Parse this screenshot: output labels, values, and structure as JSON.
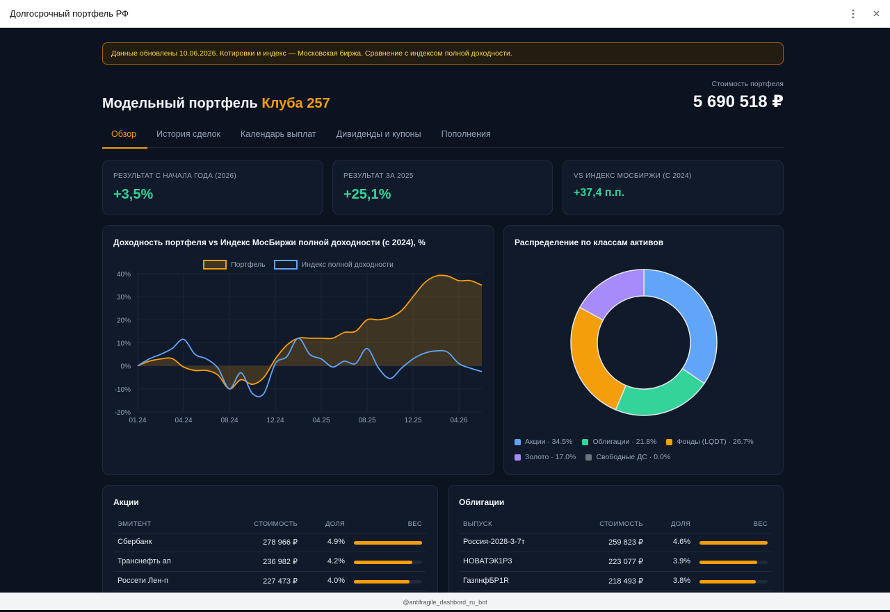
{
  "window": {
    "title": "Долгосрочный портфель РФ"
  },
  "notice": "Данные обновлены 10.06.2026. Котировки и индекс — Московская биржа. Сравнение с индексом полной доходности.",
  "header": {
    "title": "Модельный портфель",
    "title_accent": "Клуба 257",
    "value_label": "Стоимость портфеля",
    "value": "5 690 518 ₽"
  },
  "tabs": [
    "Обзор",
    "История сделок",
    "Календарь выплат",
    "Дивиденды и купоны",
    "Пополнения"
  ],
  "active_tab": 0,
  "kpis": [
    {
      "label": "РЕЗУЛЬТАТ С НАЧАЛА ГОДА (2026)",
      "value": "+3,5%"
    },
    {
      "label": "РЕЗУЛЬТАТ ЗА 2025",
      "value": "+25,1%"
    },
    {
      "label": "VS ИНДЕКС МОСБИРЖИ (С 2024)",
      "value": "+37,4 п.п."
    }
  ],
  "chart_data": [
    {
      "type": "line",
      "title": "Доходность портфеля vs Индекс МосБиржи полной доходности (с 2024), %",
      "categories": [
        "01.24",
        null,
        null,
        null,
        "04.24",
        null,
        null,
        null,
        "08.24",
        null,
        null,
        null,
        "12.24",
        null,
        null,
        null,
        "04.25",
        null,
        null,
        null,
        "08.25",
        null,
        null,
        null,
        "12.25",
        null,
        null,
        null,
        "04.26",
        null,
        null
      ],
      "series": [
        {
          "name": "Портфель",
          "color": "#f59e0b",
          "fill": true,
          "values": [
            0,
            2,
            3,
            3.2,
            -0.5,
            -2,
            -2,
            -4,
            -10,
            -6,
            -8,
            -5,
            3,
            9,
            12,
            12,
            12,
            12,
            14.5,
            15,
            20,
            20,
            21,
            24,
            30,
            36,
            39,
            39,
            37,
            37,
            35
          ]
        },
        {
          "name": "Индекс полной доходности",
          "color": "#60a5fa",
          "fill": false,
          "values": [
            0,
            3,
            5,
            7.5,
            11.5,
            5,
            3,
            -1,
            -10,
            -3,
            -12,
            -12,
            1,
            4,
            12,
            5,
            3,
            -0.5,
            2,
            1,
            7.5,
            -1,
            -5.5,
            -1,
            3,
            5.5,
            6.5,
            6,
            1,
            -1,
            -2.5
          ]
        }
      ],
      "ylim": [
        -20,
        40
      ],
      "yticks": [
        {
          "value": -20,
          "label": "-20%"
        },
        {
          "value": -10,
          "label": "-10%"
        },
        {
          "value": 0,
          "label": "0%"
        },
        {
          "value": 10,
          "label": "10%"
        },
        {
          "value": 20,
          "label": "20%"
        },
        {
          "value": 30,
          "label": "30%"
        },
        {
          "value": 40,
          "label": "40%"
        }
      ],
      "grid": true,
      "legend": "top"
    },
    {
      "type": "pie",
      "donut": true,
      "title": "Распределение по классам активов",
      "labels": [
        "Акции · 34.5%",
        "Облигации · 21.8%",
        "Фонды (LQDT) · 26.7%",
        "Золото · 17.0%",
        "Свободные ДС · 0.0%"
      ],
      "values": [
        34.5,
        21.8,
        26.7,
        17.0,
        0.0
      ],
      "colors": [
        "#60a5fa",
        "#34d399",
        "#f59e0b",
        "#a78bfa",
        "#6b7280"
      ],
      "legend": "bottom"
    }
  ],
  "tables": [
    {
      "title": "Акции",
      "columns": [
        "ЭМИТЕНТ",
        "СТОИМОСТЬ",
        "ДОЛЯ",
        "ВЕС"
      ],
      "rows": [
        {
          "name": "Сбербанк",
          "value": "278 966 ₽",
          "share": "4.9%",
          "weight": 4.9
        },
        {
          "name": "Транснефть ап",
          "value": "236 982 ₽",
          "share": "4.2%",
          "weight": 4.2
        },
        {
          "name": "Россети Лен-п",
          "value": "227 473 ₽",
          "share": "4.0%",
          "weight": 4.0
        }
      ]
    },
    {
      "title": "Облигации",
      "columns": [
        "ВЫПУСК",
        "СТОИМОСТЬ",
        "ДОЛЯ",
        "ВЕС"
      ],
      "rows": [
        {
          "name": "Россия-2028-3-7т",
          "value": "259 823 ₽",
          "share": "4.6%",
          "weight": 4.6
        },
        {
          "name": "НОВАТЭК1Р3",
          "value": "223 077 ₽",
          "share": "3.9%",
          "weight": 3.9
        },
        {
          "name": "ГазпнфБР1R",
          "value": "218 493 ₽",
          "share": "3.8%",
          "weight": 3.8
        }
      ]
    }
  ],
  "footer": "@antifragile_dashbord_ru_bot"
}
